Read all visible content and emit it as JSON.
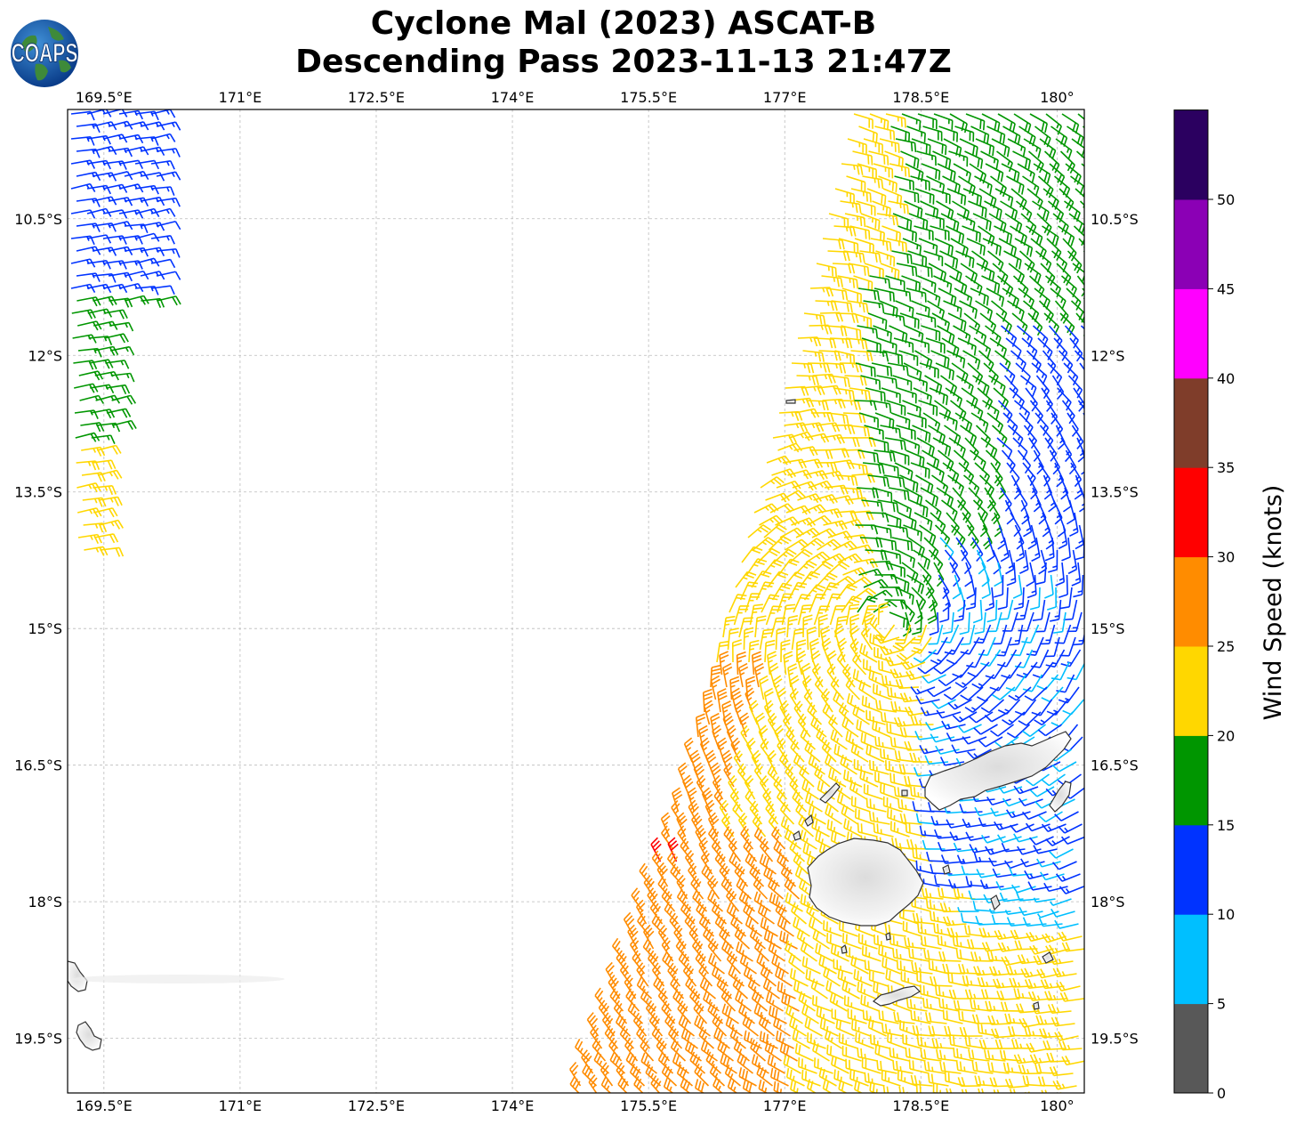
{
  "title": {
    "line1": "Cyclone Mal (2023) ASCAT-B",
    "line2": "Descending Pass 2023-11-13 21:47Z"
  },
  "logo": {
    "text": "COAPS"
  },
  "map": {
    "lon_ticks": [
      "169.5°E",
      "171°E",
      "172.5°E",
      "174°E",
      "175.5°E",
      "177°E",
      "178.5°E",
      "180°"
    ],
    "lat_ticks": [
      "10.5°S",
      "12°S",
      "13.5°S",
      "15°S",
      "16.5°S",
      "18°S",
      "19.5°S"
    ],
    "lon_values": [
      169.5,
      171,
      172.5,
      174,
      175.5,
      177,
      178.5,
      180
    ],
    "lat_values": [
      -10.5,
      -12,
      -13.5,
      -15,
      -16.5,
      -18,
      -19.5
    ],
    "lon_range": [
      169.1,
      180.3
    ],
    "lat_range": [
      -9.3,
      -20.1
    ],
    "gridlines": true
  },
  "colorbar": {
    "label": "Wind Speed (knots)",
    "ticks": [
      "0",
      "5",
      "10",
      "15",
      "20",
      "25",
      "30",
      "35",
      "40",
      "45",
      "50"
    ],
    "bins": [
      {
        "min": 0,
        "max": 5,
        "color": "#585858"
      },
      {
        "min": 5,
        "max": 10,
        "color": "#00bfff"
      },
      {
        "min": 10,
        "max": 15,
        "color": "#0033ff"
      },
      {
        "min": 15,
        "max": 20,
        "color": "#009600"
      },
      {
        "min": 20,
        "max": 25,
        "color": "#ffd700"
      },
      {
        "min": 25,
        "max": 30,
        "color": "#ff8c00"
      },
      {
        "min": 30,
        "max": 35,
        "color": "#ff0000"
      },
      {
        "min": 35,
        "max": 40,
        "color": "#7f3d2a"
      },
      {
        "min": 40,
        "max": 45,
        "color": "#ff00ff"
      },
      {
        "min": 45,
        "max": 50,
        "color": "#8b00b5"
      },
      {
        "min": 50,
        "max": 55,
        "color": "#2b0060"
      }
    ]
  }
}
